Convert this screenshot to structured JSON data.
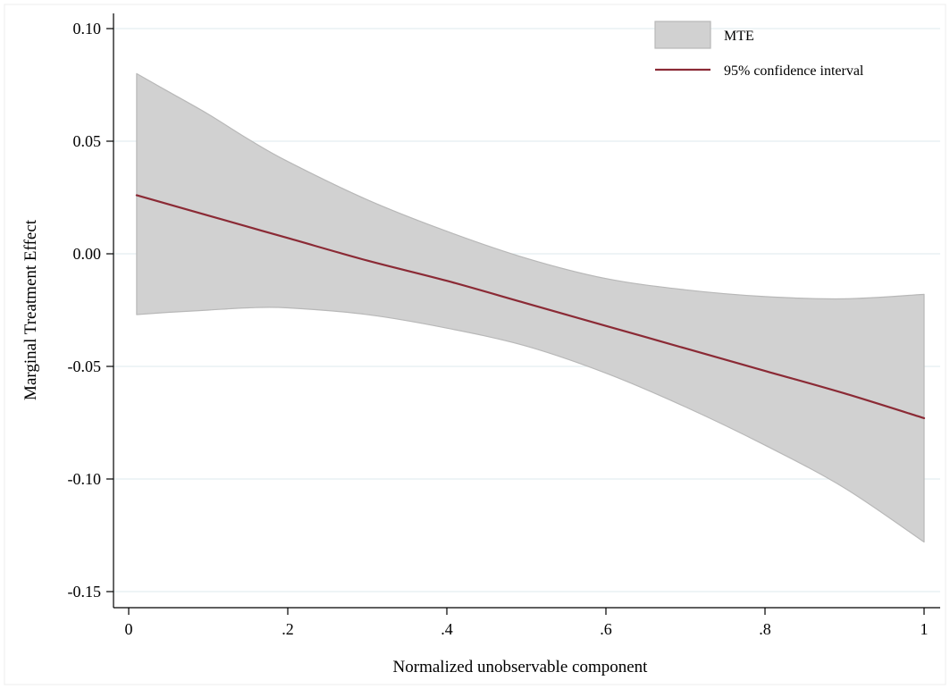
{
  "chart_data": {
    "type": "line",
    "xlabel": "Normalized unobservable component",
    "ylabel": "Marginal Treatment Effect",
    "xlim": [
      -0.02,
      1.02
    ],
    "ylim": [
      -0.155,
      0.107
    ],
    "x_ticks": [
      {
        "value": 0,
        "label": "0"
      },
      {
        "value": 0.2,
        "label": ".2"
      },
      {
        "value": 0.4,
        "label": ".4"
      },
      {
        "value": 0.6,
        "label": ".6"
      },
      {
        "value": 0.8,
        "label": ".8"
      },
      {
        "value": 1.0,
        "label": "1"
      }
    ],
    "y_ticks": [
      {
        "value": 0.1,
        "label": "0.10"
      },
      {
        "value": 0.05,
        "label": "0.05"
      },
      {
        "value": 0.0,
        "label": "0.00"
      },
      {
        "value": -0.05,
        "label": "-0.05"
      },
      {
        "value": -0.1,
        "label": "-0.10"
      },
      {
        "value": -0.15,
        "label": "-0.15"
      }
    ],
    "grid": "horizontal",
    "legend_position": "top-right",
    "series": [
      {
        "name": "MTE",
        "kind": "band",
        "color": "#d1d1d1",
        "edge_color": "#b8b8b8",
        "x": [
          0.01,
          0.05,
          0.1,
          0.15,
          0.2,
          0.3,
          0.4,
          0.5,
          0.6,
          0.7,
          0.8,
          0.9,
          1.0
        ],
        "upper": [
          0.08,
          0.072,
          0.062,
          0.051,
          0.041,
          0.024,
          0.01,
          -0.002,
          -0.011,
          -0.016,
          -0.019,
          -0.02,
          -0.018
        ],
        "lower": [
          -0.027,
          -0.026,
          -0.025,
          -0.024,
          -0.024,
          -0.027,
          -0.033,
          -0.041,
          -0.053,
          -0.068,
          -0.085,
          -0.104,
          -0.128
        ]
      },
      {
        "name": "95% confidence interval",
        "kind": "line",
        "color": "#8b2a35",
        "x": [
          0.01,
          0.1,
          0.2,
          0.3,
          0.4,
          0.5,
          0.6,
          0.7,
          0.8,
          0.9,
          1.0
        ],
        "y": [
          0.026,
          0.017,
          0.007,
          -0.003,
          -0.012,
          -0.022,
          -0.032,
          -0.042,
          -0.052,
          -0.062,
          -0.073
        ]
      }
    ]
  }
}
